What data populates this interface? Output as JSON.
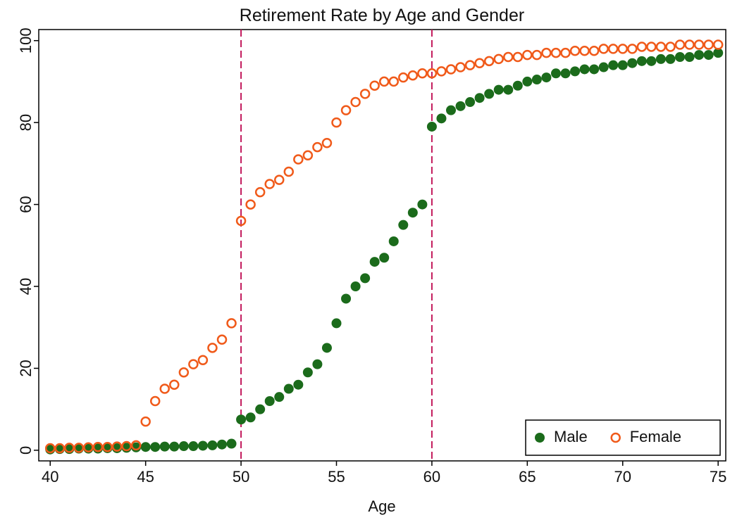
{
  "chart_data": {
    "type": "scatter",
    "title": "Retirement Rate by Age and Gender",
    "x_label": "Age",
    "x": [
      40,
      40.5,
      41,
      41.5,
      42,
      42.5,
      43,
      43.5,
      44,
      44.5,
      45,
      45.5,
      46,
      46.5,
      47,
      47.5,
      48,
      48.5,
      49,
      49.5,
      50,
      50.5,
      51,
      51.5,
      52,
      52.5,
      53,
      53.5,
      54,
      54.5,
      55,
      55.5,
      56,
      56.5,
      57,
      57.5,
      58,
      58.5,
      59,
      59.5,
      60,
      60.5,
      61,
      61.5,
      62,
      62.5,
      63,
      63.5,
      64,
      64.5,
      65,
      65.5,
      66,
      66.5,
      67,
      67.5,
      68,
      68.5,
      69,
      69.5,
      70,
      70.5,
      71,
      71.5,
      72,
      72.5,
      73,
      73.5,
      74,
      74.5,
      75
    ],
    "series": [
      {
        "name": "Male",
        "color": "#1b6b1b",
        "marker": "filled",
        "values": [
          0.2,
          0.3,
          0.3,
          0.4,
          0.4,
          0.4,
          0.5,
          0.5,
          0.6,
          0.7,
          0.8,
          0.8,
          0.9,
          0.9,
          1.0,
          1.0,
          1.1,
          1.2,
          1.4,
          1.6,
          7.5,
          8,
          10,
          12,
          13,
          15,
          16,
          19,
          21,
          25,
          31,
          37,
          40,
          42,
          46,
          47,
          51,
          55,
          58,
          60,
          79,
          81,
          83,
          84,
          85,
          86,
          87,
          88,
          88,
          89,
          90,
          90.5,
          91,
          92,
          92,
          92.5,
          93,
          93,
          93.5,
          94,
          94,
          94.5,
          95,
          95,
          95.5,
          95.5,
          96,
          96,
          96.5,
          96.5,
          97
        ]
      },
      {
        "name": "Female",
        "color": "#f05a1a",
        "marker": "hollow",
        "values": [
          0.5,
          0.5,
          0.6,
          0.6,
          0.7,
          0.8,
          0.8,
          0.9,
          1.0,
          1.2,
          7,
          12,
          15,
          16,
          19,
          21,
          22,
          25,
          27,
          31,
          56,
          60,
          63,
          65,
          66,
          68,
          71,
          72,
          74,
          75,
          80,
          83,
          85,
          87,
          89,
          90,
          90,
          91,
          91.5,
          92,
          92,
          92.5,
          93,
          93.5,
          94,
          94.5,
          95,
          95.5,
          96,
          96,
          96.5,
          96.5,
          97,
          97,
          97,
          97.5,
          97.5,
          97.5,
          98,
          98,
          98,
          98,
          98.5,
          98.5,
          98.5,
          98.5,
          99,
          99,
          99,
          99,
          99
        ]
      }
    ],
    "xlim": [
      39.4,
      75.4
    ],
    "ylim": [
      -2.6,
      102.7
    ],
    "xticks": [
      40,
      45,
      50,
      55,
      60,
      65,
      70,
      75
    ],
    "yticks": [
      0,
      20,
      40,
      60,
      80,
      100
    ],
    "vlines": [
      50,
      60
    ],
    "vline_color": "#c2185b",
    "legend": "bottom-right"
  }
}
